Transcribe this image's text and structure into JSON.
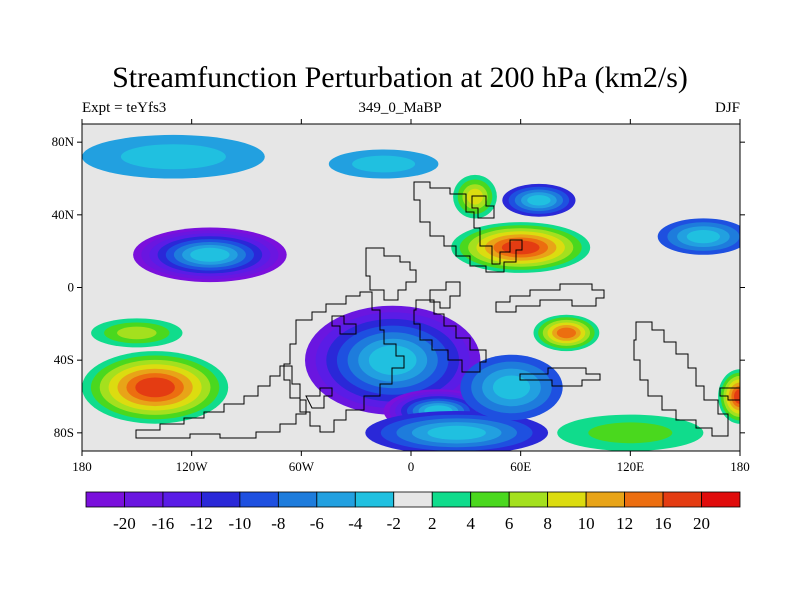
{
  "title": "Streamfunction Perturbation at 200 hPa (km2/s)",
  "left_string": "Expt = teYfs3",
  "center_string": "349_0_MaBP",
  "right_string": "DJF",
  "map": {
    "projection": "cylindrical-equidistant",
    "lon_range": [
      -180,
      180
    ],
    "lat_range": [
      -90,
      90
    ],
    "background": "#e6e6e6",
    "coastlines": "model-grid (blocky) paleo continents",
    "x_ticks": [
      {
        "value": -180,
        "label": "180"
      },
      {
        "value": -120,
        "label": "120W"
      },
      {
        "value": -60,
        "label": "60W"
      },
      {
        "value": 0,
        "label": "0"
      },
      {
        "value": 60,
        "label": "60E"
      },
      {
        "value": 120,
        "label": "120E"
      },
      {
        "value": 180,
        "label": "180"
      }
    ],
    "y_ticks": [
      {
        "value": 80,
        "label": "80N"
      },
      {
        "value": 40,
        "label": "40N"
      },
      {
        "value": 0,
        "label": "0"
      },
      {
        "value": -40,
        "label": "40S"
      },
      {
        "value": -80,
        "label": "80S"
      }
    ]
  },
  "colorbar": {
    "colors": [
      "#7a10dc",
      "#6a16e0",
      "#5a1ce6",
      "#2a28d8",
      "#1e50e0",
      "#1e7cdc",
      "#22a0e0",
      "#20c0e0",
      "#e6e6e6",
      "#10dc8c",
      "#4ad81e",
      "#a4e01e",
      "#dcdc10",
      "#e8a418",
      "#ec6e10",
      "#e43c12",
      "#e00c0c"
    ],
    "labels": [
      "-20",
      "-16",
      "-12",
      "-10",
      "-8",
      "-6",
      "-4",
      "-2",
      "2",
      "4",
      "6",
      "8",
      "10",
      "12",
      "16",
      "20"
    ]
  },
  "field_features": [
    {
      "lon": -110,
      "lat": 18,
      "rx": 42,
      "ry": 15,
      "level": -20
    },
    {
      "lon": -10,
      "lat": -40,
      "rx": 48,
      "ry": 30,
      "level": -16
    },
    {
      "lon": 15,
      "lat": -68,
      "rx": 30,
      "ry": 12,
      "level": -20
    },
    {
      "lon": 25,
      "lat": -80,
      "rx": 50,
      "ry": 12,
      "level": -10
    },
    {
      "lon": 55,
      "lat": -55,
      "rx": 28,
      "ry": 18,
      "level": -8
    },
    {
      "lon": 70,
      "lat": 48,
      "rx": 20,
      "ry": 9,
      "level": -10
    },
    {
      "lon": 160,
      "lat": 28,
      "rx": 25,
      "ry": 10,
      "level": -8
    },
    {
      "lon": -130,
      "lat": 72,
      "rx": 50,
      "ry": 12,
      "level": -4
    },
    {
      "lon": -15,
      "lat": 68,
      "rx": 30,
      "ry": 8,
      "level": -4
    },
    {
      "lon": 60,
      "lat": 22,
      "rx": 38,
      "ry": 14,
      "level": 16
    },
    {
      "lon": 35,
      "lat": 50,
      "rx": 12,
      "ry": 12,
      "level": 8
    },
    {
      "lon": -140,
      "lat": -55,
      "rx": 40,
      "ry": 20,
      "level": 16
    },
    {
      "lon": -150,
      "lat": -25,
      "rx": 25,
      "ry": 8,
      "level": 6
    },
    {
      "lon": 85,
      "lat": -25,
      "rx": 18,
      "ry": 10,
      "level": 12
    },
    {
      "lon": 180,
      "lat": -60,
      "rx": 12,
      "ry": 15,
      "level": 16
    },
    {
      "lon": 120,
      "lat": -80,
      "rx": 40,
      "ry": 10,
      "level": 4
    }
  ]
}
